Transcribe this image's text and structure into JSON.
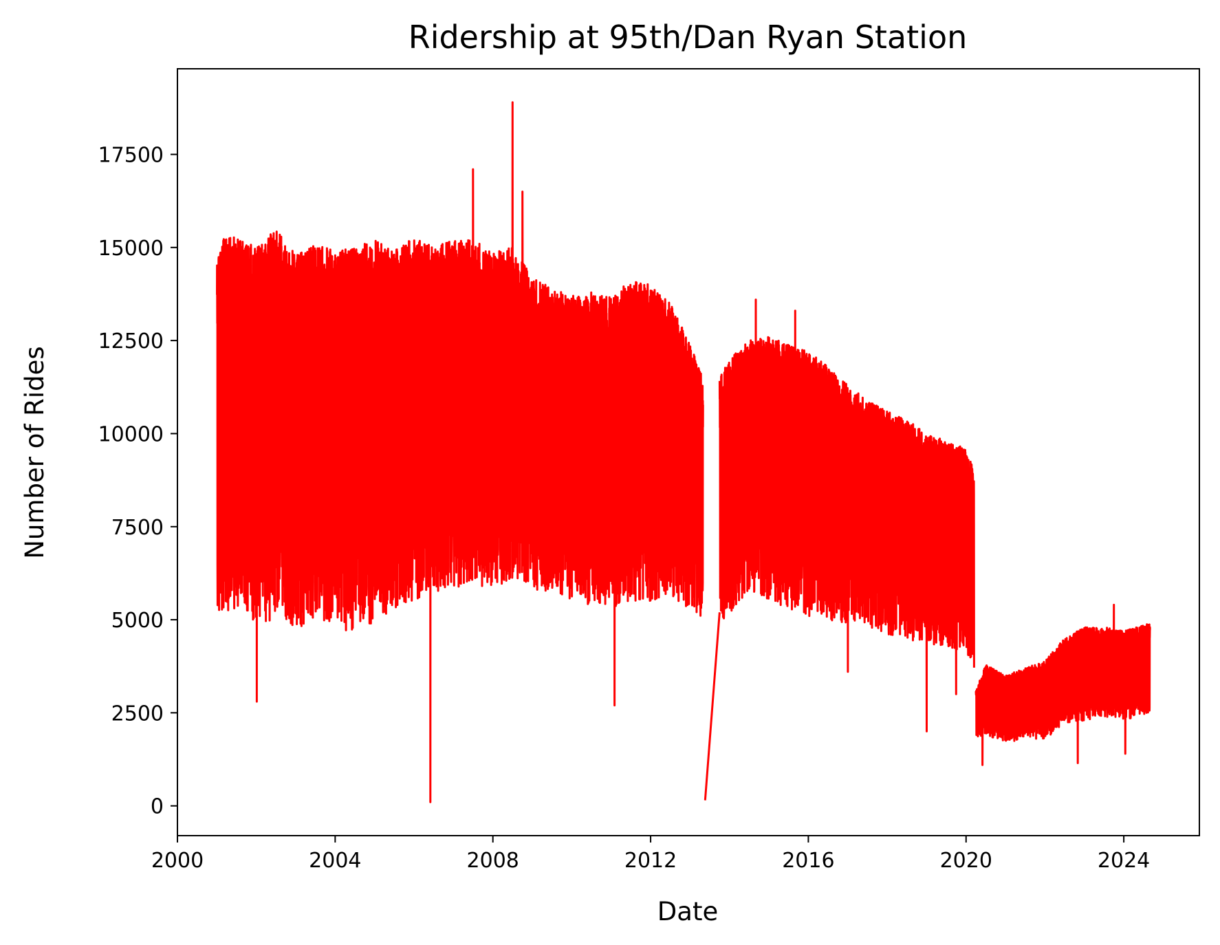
{
  "chart_data": {
    "type": "line",
    "title": "Ridership at 95th/Dan Ryan Station",
    "xlabel": "Date",
    "ylabel": "Number of Rides",
    "x_axis": "date",
    "xlim": [
      "2000-01-01",
      "2025-12-01"
    ],
    "ylim": [
      -800,
      19800
    ],
    "xticks": [
      "2000",
      "2004",
      "2008",
      "2012",
      "2016",
      "2020",
      "2024"
    ],
    "yticks": [
      "0",
      "2500",
      "5000",
      "7500",
      "10000",
      "12500",
      "15000",
      "17500"
    ],
    "grid": false,
    "legend": "none",
    "series": [
      {
        "color": "#ff0000",
        "segments": [
          {
            "x": [
              "2001-01-01",
              "2001-07-01",
              "2002-01-01",
              "2002-07-01",
              "2003-01-01",
              "2003-07-01",
              "2004-01-01",
              "2004-07-01",
              "2005-01-01",
              "2005-07-01",
              "2006-01-01",
              "2006-07-01",
              "2007-01-01",
              "2007-07-01",
              "2008-01-01",
              "2008-07-01",
              "2009-01-01",
              "2009-07-01",
              "2010-01-01",
              "2010-07-01",
              "2011-01-01",
              "2011-07-01",
              "2012-01-01",
              "2012-07-01",
              "2013-01-01",
              "2013-05-01"
            ],
            "high": [
              15200,
              15300,
              15000,
              15500,
              14800,
              15100,
              14900,
              15000,
              15200,
              14900,
              15300,
              15000,
              15200,
              15200,
              14900,
              15000,
              14200,
              13900,
              13700,
              13800,
              13700,
              14100,
              14000,
              13500,
              12400,
              11600
            ],
            "low": [
              5000,
              5100,
              4900,
              5000,
              4800,
              4900,
              4700,
              4700,
              4900,
              5300,
              5500,
              5700,
              5800,
              5900,
              5800,
              6100,
              5800,
              5700,
              5500,
              5400,
              5300,
              5500,
              5500,
              5600,
              5300,
              5000
            ],
            "peaks": [
              {
                "x": "2002-01-05",
                "y": 2800
              },
              {
                "x": "2006-06-01",
                "y": 100
              },
              {
                "x": "2007-07-01",
                "y": 17100
              },
              {
                "x": "2008-07-01",
                "y": 18900
              },
              {
                "x": "2008-10-01",
                "y": 16500
              },
              {
                "x": "2011-02-01",
                "y": 2700
              },
              {
                "x": "2013-05-20",
                "y": 150
              }
            ]
          },
          {
            "x": [
              "2013-10-01",
              "2014-01-01",
              "2014-07-01",
              "2015-01-01",
              "2015-07-01",
              "2016-01-01",
              "2016-07-01",
              "2017-01-01",
              "2017-07-01",
              "2018-01-01",
              "2018-07-01",
              "2019-01-01",
              "2019-07-01",
              "2020-01-01",
              "2020-03-15"
            ],
            "high": [
              11500,
              12000,
              12500,
              12600,
              12400,
              12200,
              11800,
              11300,
              10900,
              10600,
              10400,
              10000,
              9800,
              9600,
              9000
            ],
            "low": [
              4700,
              5100,
              5800,
              5500,
              5300,
              5100,
              5000,
              4900,
              4800,
              4600,
              4500,
              4300,
              4300,
              4100,
              3700
            ],
            "peaks": [
              {
                "x": "2014-09-01",
                "y": 13600
              },
              {
                "x": "2015-09-01",
                "y": 13300
              },
              {
                "x": "2017-01-01",
                "y": 3600
              },
              {
                "x": "2019-01-01",
                "y": 2000
              },
              {
                "x": "2019-10-01",
                "y": 3000
              }
            ]
          },
          {
            "x": [
              "2020-04-01",
              "2020-07-01",
              "2021-01-01",
              "2021-07-01",
              "2022-01-01",
              "2022-07-01",
              "2023-01-01",
              "2023-07-01",
              "2024-01-01",
              "2024-08-31"
            ],
            "high": [
              3100,
              3800,
              3500,
              3700,
              3900,
              4500,
              4800,
              4800,
              4700,
              4900
            ],
            "low": [
              1800,
              1900,
              1700,
              1800,
              1800,
              2200,
              2300,
              2400,
              2300,
              2500
            ],
            "peaks": [
              {
                "x": "2020-06-01",
                "y": 1100
              },
              {
                "x": "2022-11-01",
                "y": 1150
              },
              {
                "x": "2023-10-01",
                "y": 5400
              },
              {
                "x": "2024-01-15",
                "y": 1400
              }
            ]
          }
        ],
        "bridge": [
          {
            "x": "2013-05-20",
            "y": 150
          },
          {
            "x": "2013-10-01",
            "y": 5200
          }
        ]
      }
    ]
  }
}
